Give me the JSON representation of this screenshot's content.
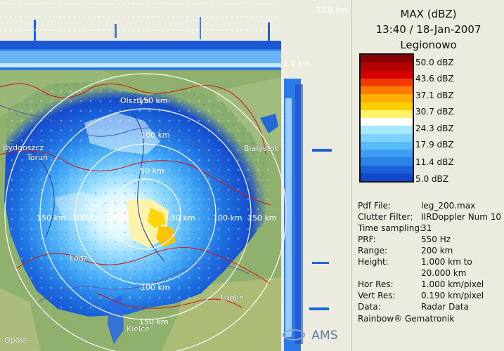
{
  "header": {
    "product": "MAX (dBZ)",
    "datetime": "13:40 / 18-Jan-2007",
    "site": "Legionowo"
  },
  "legend": {
    "labels": [
      "50.0 dBZ",
      "43.6 dBZ",
      "37.1 dBZ",
      "30.7 dBZ",
      "24.3 dBZ",
      "17.9 dBZ",
      "11.4 dBZ",
      "5.0 dBZ"
    ],
    "colors": [
      "#8a0000",
      "#b40000",
      "#d40000",
      "#f03a00",
      "#ff7a00",
      "#ffae00",
      "#ffd000",
      "#fff26b",
      "#ffffff",
      "#a8e9ff",
      "#7fd1ff",
      "#58bdf6",
      "#3e9ff2",
      "#2b83e6",
      "#1b62d8",
      "#1147cc"
    ]
  },
  "info": [
    {
      "k": "Pdf File:",
      "v": "leg_200.max"
    },
    {
      "k": "Clutter Filter:",
      "v": "IIRDoppler Num 10"
    },
    {
      "k": "Time sampling:",
      "v": "31"
    },
    {
      "k": "PRF:",
      "v": "550 Hz"
    },
    {
      "k": "Range:",
      "v": "200 km"
    },
    {
      "k": "Height:",
      "v": "1.000 km to"
    },
    {
      "k": "",
      "v": "20.000 km"
    },
    {
      "k": "Hor Res:",
      "v": "1.000 km/pixel"
    },
    {
      "k": "Vert Res:",
      "v": "0.190 km/pixel"
    },
    {
      "k": "Data:",
      "v": "Radar Data"
    }
  ],
  "footer": "Rainbow® Gematronik",
  "axes": {
    "top": "20.0 km",
    "side": "1.0 km"
  },
  "cities": [
    {
      "name": "Olsztyn"
    },
    {
      "name": "Bydgoszcz"
    },
    {
      "name": "Toruń"
    },
    {
      "name": "Białystok"
    },
    {
      "name": "Łódź"
    },
    {
      "name": "Lublin"
    },
    {
      "name": "Kielce"
    },
    {
      "name": "Opole"
    }
  ],
  "rings": [
    "150 km",
    "100 km",
    "50 km",
    "150 km",
    "100 km",
    "50 km",
    "100 km",
    "150 km",
    "100 km",
    "150 km"
  ],
  "brand": "AMS"
}
